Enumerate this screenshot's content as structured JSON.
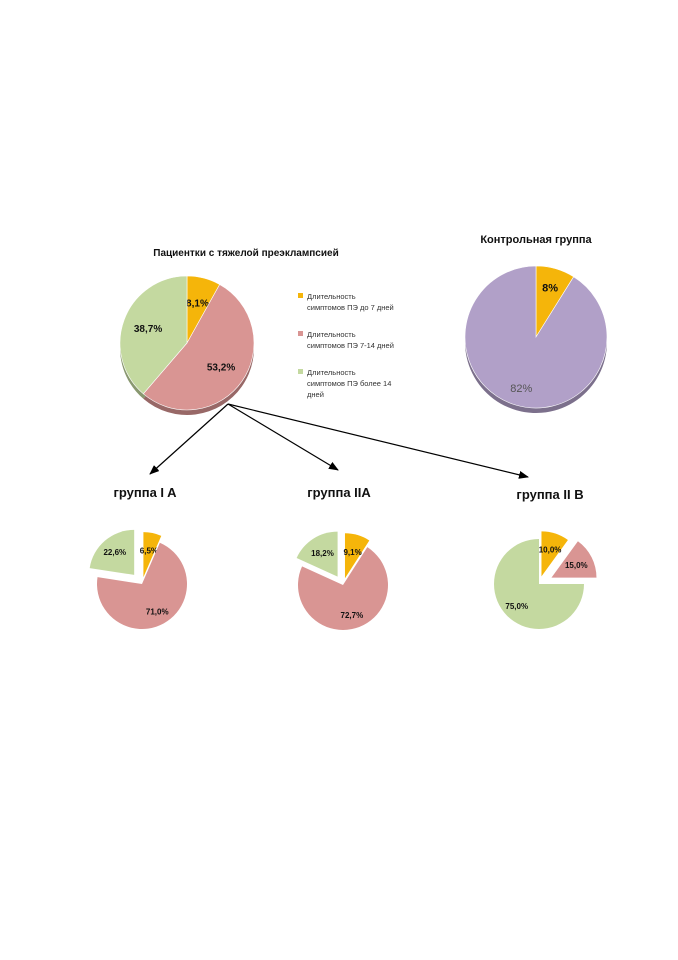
{
  "colors": {
    "yellow": "#f5b50a",
    "red": "#d99593",
    "green": "#c4d9a0",
    "purple": "#b1a0c8"
  },
  "chart_data": [
    {
      "id": "main",
      "type": "pie",
      "title": "Пациентки с тяжелой преэклампсией",
      "slices": [
        {
          "value": 8.1,
          "label": "8,1%",
          "color": "yellow"
        },
        {
          "value": 53.2,
          "label": "53,2%",
          "color": "red"
        },
        {
          "value": 38.7,
          "label": "38,7%",
          "color": "green"
        }
      ],
      "legend": [
        {
          "lines": [
            "Длительность",
            "симптомов ПЭ до 7 дней"
          ],
          "color": "yellow"
        },
        {
          "lines": [
            "Длительность",
            "симптомов ПЭ 7-14 дней"
          ],
          "color": "red"
        },
        {
          "lines": [
            "Длительность",
            "симптомов ПЭ более 14",
            "дней"
          ],
          "color": "green"
        }
      ],
      "legend_position": "right"
    },
    {
      "id": "control",
      "type": "pie",
      "title": "Контрольная группа",
      "slices": [
        {
          "value": 8,
          "label": "8%",
          "color": "yellow"
        },
        {
          "value": 82,
          "label": "82%",
          "color": "purple"
        }
      ]
    },
    {
      "id": "group1a",
      "type": "pie",
      "title": "группа I A",
      "slices": [
        {
          "value": 6.5,
          "label": "6,5%",
          "color": "yellow"
        },
        {
          "value": 71.0,
          "label": "71,0%",
          "color": "red"
        },
        {
          "value": 22.6,
          "label": "22,6%",
          "color": "green"
        }
      ]
    },
    {
      "id": "group2a",
      "type": "pie",
      "title": "группа IIA",
      "slices": [
        {
          "value": 9.1,
          "label": "9,1%",
          "color": "yellow"
        },
        {
          "value": 72.7,
          "label": "72,7%",
          "color": "red"
        },
        {
          "value": 18.2,
          "label": "18,2%",
          "color": "green"
        }
      ]
    },
    {
      "id": "group2b",
      "type": "pie",
      "title": "группа II В",
      "slices": [
        {
          "value": 10.0,
          "label": "10,0%",
          "color": "yellow"
        },
        {
          "value": 15.0,
          "label": "15,0%",
          "color": "red"
        },
        {
          "value": 75.0,
          "label": "75,0%",
          "color": "green"
        }
      ]
    }
  ]
}
